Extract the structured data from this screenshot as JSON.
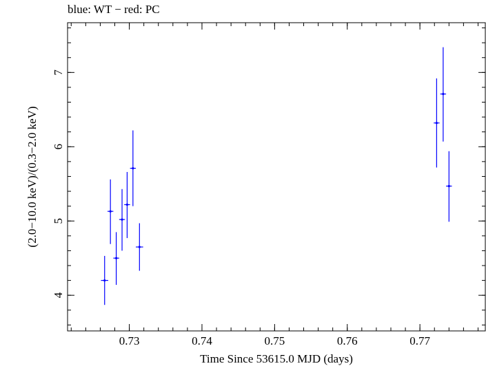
{
  "chart_data": {
    "type": "scatter",
    "title": "blue: WT − red: PC",
    "xlabel": "Time Since 53615.0 MJD (days)",
    "ylabel": "(2.0−10.0 keV)/(0.3−2.0 keV)",
    "xlim": [
      0.7215,
      0.779
    ],
    "ylim": [
      3.52,
      7.67
    ],
    "x_ticks": [
      0.73,
      0.74,
      0.75,
      0.76,
      0.77
    ],
    "x_tick_labels": [
      "0.73",
      "0.74",
      "0.75",
      "0.76",
      "0.77"
    ],
    "y_ticks": [
      4,
      5,
      6,
      7
    ],
    "y_tick_labels": [
      "4",
      "5",
      "6",
      "7"
    ],
    "x_minor_step": 0.002,
    "y_minor_step": 0.2,
    "grid": false,
    "series": [
      {
        "name": "WT",
        "color": "#0000ff",
        "points": [
          {
            "x": 0.7266,
            "y": 4.2,
            "ylo": 3.87,
            "yhi": 4.53,
            "xerr": 0.0005
          },
          {
            "x": 0.7274,
            "y": 5.13,
            "ylo": 4.69,
            "yhi": 5.56,
            "xerr": 0.0004
          },
          {
            "x": 0.7282,
            "y": 4.5,
            "ylo": 4.14,
            "yhi": 4.85,
            "xerr": 0.0004
          },
          {
            "x": 0.729,
            "y": 5.02,
            "ylo": 4.6,
            "yhi": 5.43,
            "xerr": 0.0004
          },
          {
            "x": 0.7297,
            "y": 5.22,
            "ylo": 4.77,
            "yhi": 5.66,
            "xerr": 0.0004
          },
          {
            "x": 0.7305,
            "y": 5.71,
            "ylo": 5.2,
            "yhi": 6.22,
            "xerr": 0.0004
          },
          {
            "x": 0.7314,
            "y": 4.65,
            "ylo": 4.33,
            "yhi": 4.97,
            "xerr": 0.0005
          },
          {
            "x": 0.7723,
            "y": 6.32,
            "ylo": 5.72,
            "yhi": 6.92,
            "xerr": 0.0004
          },
          {
            "x": 0.7732,
            "y": 6.71,
            "ylo": 6.07,
            "yhi": 7.34,
            "xerr": 0.0004
          },
          {
            "x": 0.774,
            "y": 5.47,
            "ylo": 4.99,
            "yhi": 5.94,
            "xerr": 0.0004
          }
        ]
      }
    ]
  }
}
